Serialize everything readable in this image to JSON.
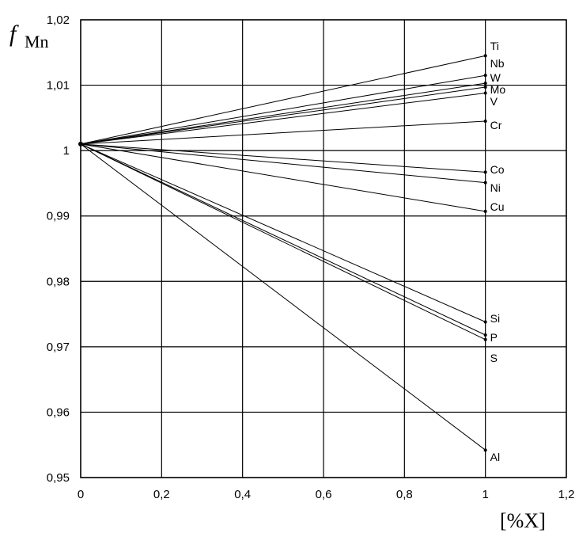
{
  "chart_data": {
    "type": "line",
    "xlabel": "[%X]",
    "ylabel": {
      "main": "f",
      "sub": "Mn"
    },
    "xlim": [
      0,
      1.2
    ],
    "ylim": [
      0.95,
      1.02
    ],
    "grid": true,
    "x_ticks": [
      "0",
      "0,2",
      "0,4",
      "0,6",
      "0,8",
      "1",
      "1,2"
    ],
    "y_ticks": [
      "0,95",
      "0,96",
      "0,97",
      "0,98",
      "0,99",
      "1",
      "1,01",
      "1,02"
    ],
    "series": [
      {
        "name": "Ti",
        "x": [
          0,
          1
        ],
        "y": [
          1.001,
          1.0145
        ]
      },
      {
        "name": "Nb",
        "x": [
          0,
          1
        ],
        "y": [
          1.001,
          1.0115
        ]
      },
      {
        "name": "W",
        "x": [
          0,
          1
        ],
        "y": [
          1.001,
          1.0103
        ]
      },
      {
        "name": "Mo",
        "x": [
          0,
          1
        ],
        "y": [
          1.001,
          1.0097
        ]
      },
      {
        "name": "V",
        "x": [
          0,
          1
        ],
        "y": [
          1.001,
          1.0088
        ]
      },
      {
        "name": "Cr",
        "x": [
          0,
          1
        ],
        "y": [
          1.001,
          1.0045
        ]
      },
      {
        "name": "Co",
        "x": [
          0,
          1
        ],
        "y": [
          1.001,
          0.9967
        ]
      },
      {
        "name": "Ni",
        "x": [
          0,
          1
        ],
        "y": [
          1.001,
          0.9951
        ]
      },
      {
        "name": "Cu",
        "x": [
          0,
          1
        ],
        "y": [
          1.001,
          0.9907
        ]
      },
      {
        "name": "Si",
        "x": [
          0,
          1
        ],
        "y": [
          1.001,
          0.9738
        ]
      },
      {
        "name": "P",
        "x": [
          0,
          1
        ],
        "y": [
          1.001,
          0.9718
        ]
      },
      {
        "name": "S",
        "x": [
          0,
          1
        ],
        "y": [
          1.001,
          0.9711
        ]
      },
      {
        "name": "Al",
        "x": [
          0,
          1
        ],
        "y": [
          1.001,
          0.9542
        ]
      }
    ]
  }
}
